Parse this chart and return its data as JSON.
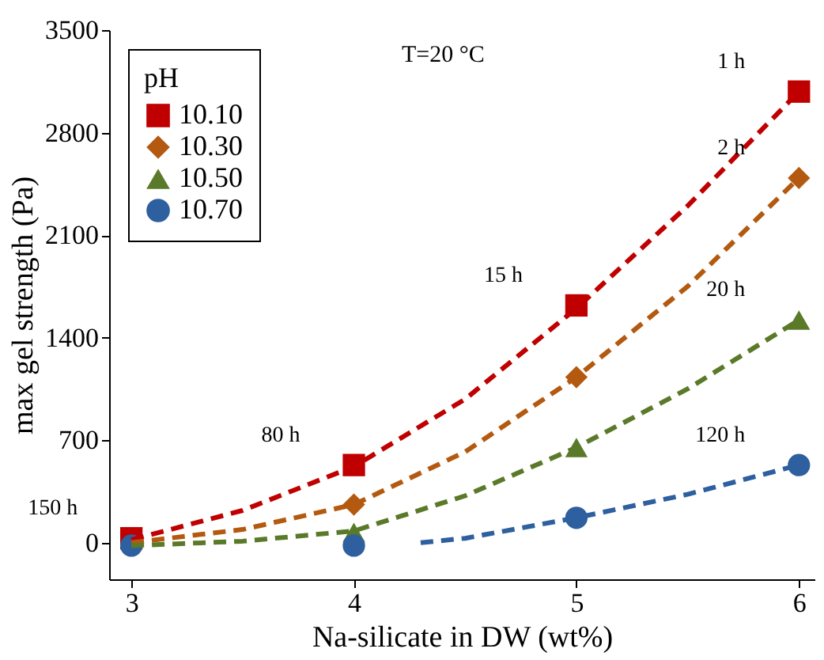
{
  "chart_data": {
    "type": "scatter",
    "xlabel": "Na-silicate in DW (wt%)",
    "ylabel": "max gel strength (Pa)",
    "legend_title": "pH",
    "legend": "top left",
    "grid": false,
    "xlim": [
      2.9,
      6.07
    ],
    "xticks": [
      3,
      4,
      5,
      6
    ],
    "ylim": [
      -250,
      3500
    ],
    "yticks": [
      0,
      700,
      1400,
      2100,
      2800,
      3500
    ],
    "series": [
      {
        "name": "10.10",
        "color": "#c00000",
        "marker": "square",
        "x": [
          3,
          4,
          5,
          6
        ],
        "values": [
          30,
          530,
          1620,
          3080
        ]
      },
      {
        "name": "10.30",
        "color": "#b35a10",
        "marker": "diamond",
        "x": [
          4,
          5,
          6
        ],
        "values": [
          260,
          1130,
          2490
        ]
      },
      {
        "name": "10.50",
        "color": "#5a7a2a",
        "marker": "triangle",
        "x": [
          4,
          5,
          6
        ],
        "values": [
          70,
          650,
          1520
        ]
      },
      {
        "name": "10.70",
        "color": "#2e5f9e",
        "marker": "circle",
        "x": [
          3,
          4,
          5,
          6
        ],
        "values": [
          -20,
          -20,
          170,
          530
        ]
      },
      {
        "type": "line",
        "line_style": "dashed",
        "color": "#c00000",
        "x": [
          3,
          3.5,
          4,
          4.5,
          5,
          5.5,
          6
        ],
        "values": [
          20,
          220,
          520,
          980,
          1600,
          2300,
          3080
        ]
      },
      {
        "type": "line",
        "line_style": "dashed",
        "color": "#b35a10",
        "x": [
          3,
          3.5,
          4,
          4.5,
          5,
          5.5,
          6
        ],
        "values": [
          0,
          90,
          260,
          620,
          1130,
          1750,
          2490
        ]
      },
      {
        "type": "line",
        "line_style": "dashed",
        "color": "#5a7a2a",
        "x": [
          3,
          3.5,
          4,
          4.5,
          5,
          5.5,
          6
        ],
        "values": [
          -20,
          10,
          80,
          320,
          650,
          1050,
          1520
        ]
      },
      {
        "type": "line",
        "line_style": "dashed",
        "color": "#2e5f9e",
        "x": [
          4.3,
          4.5,
          5,
          5.5,
          6
        ],
        "values": [
          0,
          30,
          170,
          330,
          530
        ]
      }
    ],
    "annotations": [
      "T=20 °C",
      {
        "text": "150 h",
        "x": 3,
        "y": 30
      },
      {
        "text": "80 h",
        "x": 4,
        "y": 530
      },
      {
        "text": "15 h",
        "x": 5,
        "y": 1620
      },
      {
        "text": "1 h",
        "x": 6,
        "y": 3080
      },
      {
        "text": "2 h",
        "x": 6,
        "y": 2490
      },
      {
        "text": "20 h",
        "x": 6,
        "y": 1520
      },
      {
        "text": "120 h",
        "x": 6,
        "y": 530
      }
    ]
  }
}
